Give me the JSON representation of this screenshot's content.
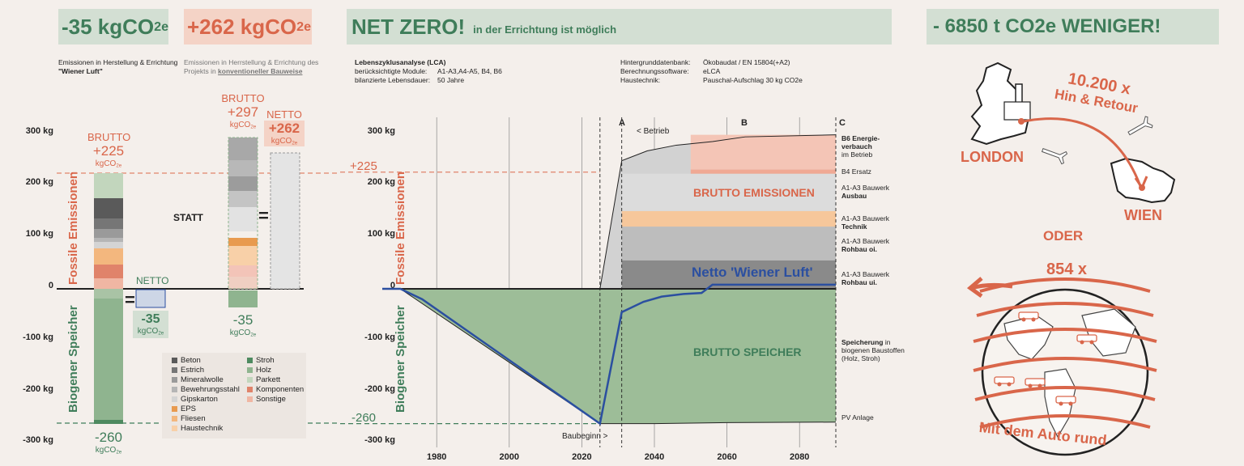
{
  "header": {
    "box1": "-35 kgCO",
    "box1_sub": "2e",
    "box2": "+262 kgCO",
    "box2_sub": "2e",
    "box3_main": "NET ZERO!",
    "box3_small": "in der Errichtung ist möglich",
    "box4": "- 6850 t CO2e WENIGER!"
  },
  "captions": {
    "c1_line1": "Emissionen in Herstellung & Errichtung",
    "c1_line2": "\"Wiener Luft\"",
    "c2_line1": "Emissionen in Herrstellung & Errichtung des",
    "c2_line2_a": "Projekts in ",
    "c2_line2_b": "konventioneller Bauweise"
  },
  "lca_info": {
    "title": "Lebenszyklusanalyse (LCA)",
    "row1_label": "berücksichtigte Module:",
    "row1_value": "A1-A3,A4-A5, B4, B6",
    "row2_label": "bilanzierte Lebensdauer:",
    "row2_value": "50 Jahre",
    "row3_label": "Hintergrunddatenbank:",
    "row3_value": "Ökobaudat / EN 15804(+A2)",
    "row4_label": "Berechnungssoftware:",
    "row4_value": "eLCA",
    "row5_label": "Haustechnik:",
    "row5_value": "Pauschal-Aufschlag 30 kg CO2e"
  },
  "left_chart": {
    "y_ticks": [
      "300 kg",
      "200 kg",
      "100 kg",
      "0",
      "-100 kg",
      "-200 kg",
      "-300 kg"
    ],
    "axis_label_top": "Fossile Emissionen",
    "axis_label_bottom": "Biogener Speicher",
    "brutto_label": "BRUTTO",
    "brutto_value": "+225",
    "brutto_unit": "kgCO",
    "brutto2_label": "BRUTTO",
    "brutto2_value": "+297",
    "brutto2_unit": "kgCO",
    "netto2_label": "NETTO",
    "netto2_value": "+262",
    "netto2_unit": "kgCO",
    "netto_label": "NETTO",
    "netto_value": "-35",
    "netto_unit": "kgCO",
    "statt": "STATT",
    "eq1": "=",
    "eq2": "=",
    "bottom_value": "-260",
    "bottom_unit": "kgCO",
    "mid_value": "-35",
    "mid_unit": "kgCO",
    "unit_sub": "2e"
  },
  "legend": [
    {
      "label": "Beton",
      "color": "#5a5a5a"
    },
    {
      "label": "Estrich",
      "color": "#767676"
    },
    {
      "label": "Mineralwolle",
      "color": "#9a9a9a"
    },
    {
      "label": "Bewehrungsstahl",
      "color": "#b5b5b5"
    },
    {
      "label": "Gipskarton",
      "color": "#d4d4d4"
    },
    {
      "label": "EPS",
      "color": "#e89a4f"
    },
    {
      "label": "Fliesen",
      "color": "#f3b77e"
    },
    {
      "label": "Haustechnik",
      "color": "#f8d0a8"
    },
    {
      "label": "Stroh",
      "color": "#4e8a60"
    },
    {
      "label": "Holz",
      "color": "#8fb48f"
    },
    {
      "label": "Parkett",
      "color": "#c2d6bd"
    },
    {
      "label": "Komponenten",
      "color": "#e0836a"
    },
    {
      "label": "Sonstige",
      "color": "#f0b6a3"
    }
  ],
  "chart_data": {
    "type": "area",
    "xlabel": "",
    "ylabel": "",
    "ylim": [
      -300,
      300
    ],
    "xlim": [
      1965,
      2090
    ],
    "x_ticks": [
      1980,
      2000,
      2020,
      2040,
      2060,
      2080
    ],
    "y_ticks": [
      "300 kg",
      "200 kg",
      "100 kg",
      "0",
      "-100 kg",
      "-200 kg",
      "-300 kg"
    ],
    "axis_label_top": "Fossile Emissionen",
    "axis_label_bottom": "Biogener Speicher",
    "markers": {
      "plus225": "+225",
      "minus260": "-260"
    },
    "phase_labels": [
      "A",
      "B",
      "C"
    ],
    "betrieb_label": "< Betrieb",
    "baubeginn_label": "Baubeginn >",
    "area_label_top": "BRUTTO EMISSIONEN",
    "area_label_bottom": "BRUTTO SPEICHER",
    "series": [
      {
        "name": "Netto 'Wiener Luft'",
        "x": [
          1965,
          1970,
          1976,
          2025,
          2031,
          2037,
          2042,
          2048,
          2053,
          2056,
          2065,
          2075,
          2090
        ],
        "y": [
          0,
          0,
          -20,
          -260,
          -45,
          -25,
          -15,
          -10,
          -8,
          8,
          8,
          8,
          8
        ]
      },
      {
        "name": "BRUTTO EMISSIONEN (Obergrenze)",
        "x": [
          2025,
          2031,
          2038,
          2046,
          2056,
          2065,
          2090
        ],
        "y": [
          0,
          247,
          266,
          277,
          284,
          293,
          297
        ]
      },
      {
        "name": "BRUTTO SPEICHER (Untergrenze)",
        "x": [
          1970,
          2025,
          2040,
          2060,
          2090
        ],
        "y": [
          0,
          -260,
          -260,
          -258,
          -257
        ]
      }
    ],
    "right_labels": [
      {
        "bold": "B6 Energie-",
        "bold2": "verbauch",
        "rest": "im Betrieb"
      },
      {
        "bold": "",
        "bold2": "",
        "rest": "B4 Ersatz"
      },
      {
        "bold": "Ausbau",
        "bold2": "",
        "rest": "A1-A3 Bauwerk"
      },
      {
        "bold": "Technik",
        "bold2": "",
        "rest": "A1-A3 Bauwerk"
      },
      {
        "bold": "Rohbau oi.",
        "bold2": "",
        "rest": "A1-A3 Bauwerk"
      },
      {
        "bold": "Rohbau ui.",
        "bold2": "",
        "rest": "A1-A3 Bauwerk"
      },
      {
        "bold": "Speicherung",
        "bold2": "",
        "rest": "in biogenen Baustoffen (Holz, Stroh)"
      },
      {
        "bold": "",
        "bold2": "",
        "rest": "PV Anlage"
      }
    ]
  },
  "right_panel": {
    "trips": "10.200 x",
    "trips_sub": "Hin & Retour",
    "london": "LONDON",
    "wien": "WIEN",
    "oder": "ODER",
    "rounds": "854 x",
    "caption": "Mit dem Auto rund"
  },
  "colors": {
    "green": "#3f7d5a",
    "green_box": "#d3dfd3",
    "orange": "#d9664a",
    "orange_box": "#f4d3c6",
    "blue": "#2b4fa0",
    "bg": "#f4efeb"
  }
}
